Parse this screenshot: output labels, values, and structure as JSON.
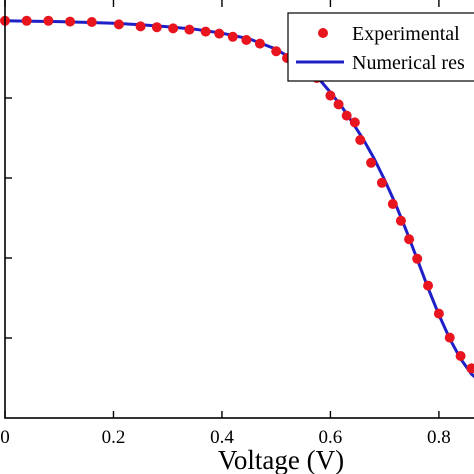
{
  "chart_data": {
    "type": "line",
    "title": "",
    "xlabel": "Voltage (V)",
    "ylabel": "",
    "xlim": [
      0,
      0.885
    ],
    "ylim": [
      0,
      1.05
    ],
    "x_ticks": [
      0,
      0.2,
      0.4,
      0.6,
      0.8
    ],
    "x_tick_labels": [
      "0",
      "0.2",
      "0.4",
      "0.6",
      "0.8"
    ],
    "y_ticks": [
      0.2,
      0.4,
      0.6,
      0.8
    ],
    "legend_position": "top-right",
    "grid": false,
    "series": [
      {
        "name": "Experimental",
        "kind": "scatter",
        "color": "#e8141e",
        "x": [
          0.0,
          0.04,
          0.08,
          0.12,
          0.16,
          0.21,
          0.25,
          0.28,
          0.31,
          0.34,
          0.37,
          0.395,
          0.42,
          0.445,
          0.47,
          0.5,
          0.52,
          0.55,
          0.575,
          0.6,
          0.615,
          0.63,
          0.645,
          0.655,
          0.675,
          0.695,
          0.715,
          0.73,
          0.745,
          0.76,
          0.78,
          0.8,
          0.82,
          0.84,
          0.86,
          0.88
        ],
        "y": [
          0.993,
          0.993,
          0.993,
          0.991,
          0.99,
          0.984,
          0.979,
          0.977,
          0.974,
          0.971,
          0.966,
          0.961,
          0.953,
          0.945,
          0.936,
          0.917,
          0.9,
          0.876,
          0.85,
          0.806,
          0.784,
          0.756,
          0.739,
          0.695,
          0.638,
          0.588,
          0.535,
          0.493,
          0.447,
          0.398,
          0.331,
          0.261,
          0.201,
          0.155,
          0.124,
          0.09
        ]
      },
      {
        "name": "Numerical res",
        "kind": "line",
        "color": "#1f1fc8",
        "x": [
          0.0,
          0.05,
          0.1,
          0.15,
          0.2,
          0.25,
          0.3,
          0.35,
          0.4,
          0.45,
          0.5,
          0.55,
          0.58,
          0.6,
          0.62,
          0.64,
          0.66,
          0.68,
          0.7,
          0.72,
          0.74,
          0.76,
          0.78,
          0.8,
          0.82,
          0.84,
          0.86,
          0.885
        ],
        "y": [
          0.993,
          0.992,
          0.991,
          0.989,
          0.987,
          0.983,
          0.978,
          0.972,
          0.962,
          0.948,
          0.922,
          0.88,
          0.846,
          0.814,
          0.78,
          0.74,
          0.698,
          0.65,
          0.595,
          0.535,
          0.468,
          0.397,
          0.325,
          0.258,
          0.198,
          0.148,
          0.11,
          0.08
        ]
      }
    ]
  }
}
